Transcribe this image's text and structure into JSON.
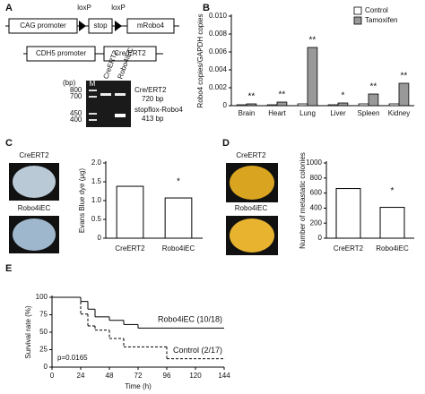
{
  "panel_a": {
    "label": "A",
    "construct": {
      "loxp_left": "loxP",
      "loxp_right": "loxP",
      "promoter": "CAG promoter",
      "stop": "stop",
      "gene": "mRobo4"
    },
    "driver": {
      "promoter": "CDH5 promoter",
      "gene": "Cre/ERT2"
    },
    "gel": {
      "unit": "(bp)",
      "lanes": [
        "M",
        "CreERT2",
        "Robo4iEC"
      ],
      "markers": [
        "800",
        "700",
        "450",
        "400"
      ],
      "bands": [
        {
          "name": "Cre/ERT2",
          "size": "720 bp"
        },
        {
          "name": "stopflox-Robo4",
          "size": "413 bp"
        }
      ]
    }
  },
  "chart_data": [
    {
      "type": "bar",
      "panel": "B",
      "y_label": "Robo4 copies/GAPDH copies",
      "categories": [
        "Brain",
        "Heart",
        "Lung",
        "Liver",
        "Spleen",
        "Kidney"
      ],
      "series": [
        {
          "name": "Control",
          "color": "#ffffff",
          "values": [
            0.0001,
            0.0001,
            0.0002,
            0.0001,
            0.0002,
            0.0002
          ]
        },
        {
          "name": "Tamoxifen",
          "color": "#999999",
          "values": [
            0.0002,
            0.0004,
            0.0065,
            0.0003,
            0.0013,
            0.0025
          ]
        }
      ],
      "annotations": [
        "**",
        "**",
        "**",
        "*",
        "**",
        "**"
      ],
      "ylim": [
        0,
        0.01
      ],
      "yticks": [
        0,
        0.002,
        0.004,
        0.006,
        0.008,
        {
          "value": 0.01,
          "label": "0.010"
        }
      ],
      "legend": "top-right"
    },
    {
      "type": "bar",
      "panel": "C",
      "y_label": "Evans Blue dye (μg)",
      "image_labels": [
        "CreERT2",
        "Robo4iEC"
      ],
      "categories": [
        "CreERT2",
        "Robo4iEC"
      ],
      "values": [
        1.38,
        1.07
      ],
      "color": "#ffffff",
      "annotations": [
        null,
        "*"
      ],
      "ylim": [
        0,
        2
      ],
      "yticks": [
        0,
        0.5,
        {
          "value": 1,
          "label": "1.0"
        },
        1.5,
        {
          "value": 2,
          "label": "2.0"
        }
      ]
    },
    {
      "type": "bar",
      "panel": "D",
      "y_label": "Number of metastatic colonies",
      "image_labels": [
        "CreERT2",
        "Robo4iEC"
      ],
      "categories": [
        "CreERT2",
        "Robo4iEC"
      ],
      "values": [
        660,
        410
      ],
      "color": "#ffffff",
      "annotations": [
        null,
        "*"
      ],
      "ylim": [
        0,
        1000
      ],
      "yticks": [
        0,
        200,
        400,
        600,
        800,
        1000
      ]
    },
    {
      "type": "step",
      "panel": "E",
      "y_label": "Survival rate (%)",
      "x_label": "Time (h)",
      "annotation": "p=0.0165",
      "series": [
        {
          "name": "Robo4iEC (10/18)",
          "color": "#000000",
          "line_style": "solid",
          "x": [
            0,
            24,
            30,
            36,
            48,
            60,
            72,
            144
          ],
          "values": [
            100,
            94,
            83,
            72,
            67,
            61,
            56,
            56
          ]
        },
        {
          "name": "Control (2/17)",
          "color": "#000000",
          "line_style": "dashed",
          "x": [
            0,
            24,
            30,
            36,
            48,
            60,
            96,
            144
          ],
          "values": [
            100,
            76,
            59,
            53,
            41,
            29,
            12,
            12
          ]
        }
      ],
      "xlim": [
        0,
        144
      ],
      "xticks": [
        0,
        24,
        48,
        72,
        96,
        120,
        144
      ],
      "ylim": [
        0,
        100
      ],
      "yticks": [
        0,
        25,
        50,
        75,
        100
      ]
    }
  ]
}
